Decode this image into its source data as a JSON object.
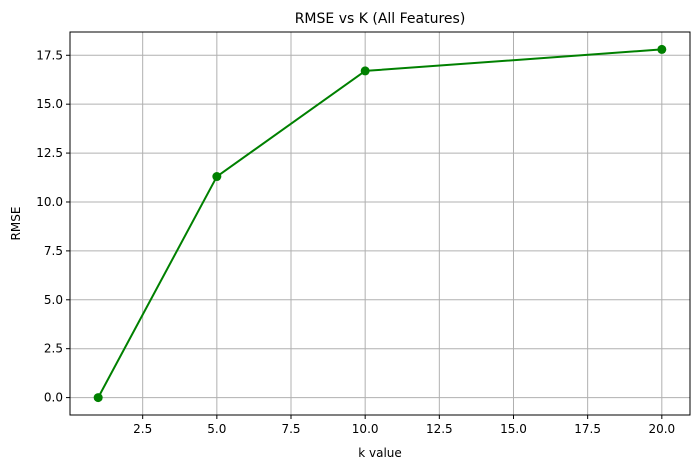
{
  "chart_data": {
    "type": "line",
    "title": "RMSE vs K (All Features)",
    "xlabel": "k value",
    "ylabel": "RMSE",
    "x": [
      1,
      5,
      10,
      20
    ],
    "series": [
      {
        "values": [
          0.0,
          11.3,
          16.7,
          17.8
        ],
        "color": "#008000",
        "marker": "circle"
      }
    ],
    "xlim": [
      0.05,
      20.95
    ],
    "ylim": [
      -0.89,
      18.69
    ],
    "xticks": [
      2.5,
      5.0,
      7.5,
      10.0,
      12.5,
      15.0,
      17.5,
      20.0
    ],
    "xtick_labels": [
      "2.5",
      "5.0",
      "7.5",
      "10.0",
      "12.5",
      "15.0",
      "17.5",
      "20.0"
    ],
    "yticks": [
      0.0,
      2.5,
      5.0,
      7.5,
      10.0,
      12.5,
      15.0,
      17.5
    ],
    "ytick_labels": [
      "0.0",
      "2.5",
      "5.0",
      "7.5",
      "10.0",
      "12.5",
      "15.0",
      "17.5"
    ],
    "grid": true,
    "grid_color": "#b0b0b0"
  }
}
